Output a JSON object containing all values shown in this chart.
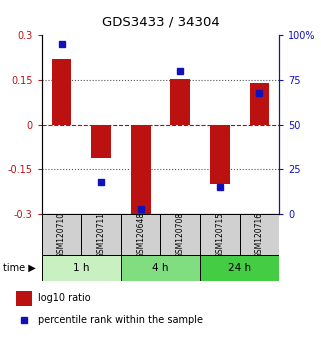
{
  "title": "GDS3433 / 34304",
  "samples": [
    "GSM120710",
    "GSM120711",
    "GSM120648",
    "GSM120708",
    "GSM120715",
    "GSM120716"
  ],
  "log10_ratio": [
    0.22,
    -0.11,
    -0.3,
    0.155,
    -0.2,
    0.14
  ],
  "percentile_rank": [
    95,
    18,
    3,
    80,
    15,
    68
  ],
  "time_groups": [
    {
      "label": "1 h",
      "samples": [
        0,
        1
      ],
      "color": "#c8f0c0"
    },
    {
      "label": "4 h",
      "samples": [
        2,
        3
      ],
      "color": "#80dd80"
    },
    {
      "label": "24 h",
      "samples": [
        4,
        5
      ],
      "color": "#44cc44"
    }
  ],
  "bar_color": "#bb1111",
  "dot_color": "#1111bb",
  "ylim_left": [
    -0.3,
    0.3
  ],
  "ylim_right": [
    0,
    100
  ],
  "yticks_left": [
    -0.3,
    -0.15,
    0,
    0.15,
    0.3
  ],
  "ytick_labels_left": [
    "-0.3",
    "-0.15",
    "0",
    "0.15",
    "0.3"
  ],
  "yticks_right": [
    0,
    25,
    50,
    75,
    100
  ],
  "ytick_labels_right": [
    "0",
    "25",
    "50",
    "75",
    "100%"
  ],
  "hline_zero_color": "#cc0000",
  "hline_other_color": "#555555",
  "legend_items": [
    {
      "label": "log10 ratio",
      "color": "#bb1111"
    },
    {
      "label": "percentile rank within the sample",
      "color": "#1111bb"
    }
  ],
  "bar_width": 0.5,
  "sample_box_color": "#d0d0d0",
  "bg_color": "#ffffff"
}
